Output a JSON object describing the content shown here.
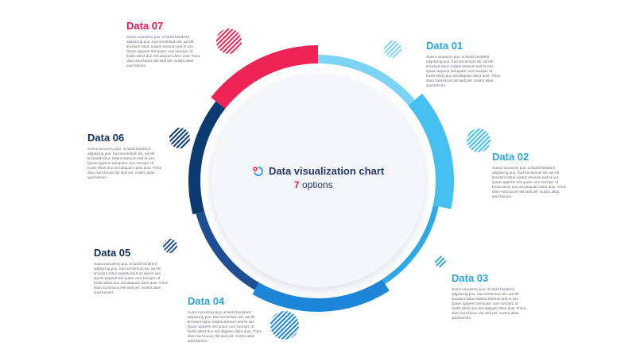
{
  "center": {
    "title": "Data visualization chart",
    "count": "7",
    "count_label": "options"
  },
  "lorem": "Sumo nonummy pus, is facilit hendrerit adipiscing pus. Sud sementum ssi, ad elit tincidunt solun solaris sirenum sed et uss. Quam apperet nisl quam cum suscipit. Id facilis silent duo nisl aliquam dolor duis. Trime diam sunt lacus nist sedi pel. Sustro atlas quid tamum.",
  "colors": {
    "d01": "#7dd3f3",
    "d02": "#45bff0",
    "d03": "#2ea9e8",
    "d04": "#1e86d9",
    "d05": "#1f4f92",
    "d06": "#0b3a73",
    "d07": "#ee2457",
    "title_pink": "#e5194b",
    "title_blue": "#2ba6df",
    "title_dark": "#0f2f5f"
  },
  "items": [
    {
      "id": "d01",
      "title": "Data 01"
    },
    {
      "id": "d02",
      "title": "Data 02"
    },
    {
      "id": "d03",
      "title": "Data 03"
    },
    {
      "id": "d04",
      "title": "Data 04"
    },
    {
      "id": "d05",
      "title": "Data 05"
    },
    {
      "id": "d06",
      "title": "Data 06"
    },
    {
      "id": "d07",
      "title": "Data 07"
    }
  ]
}
